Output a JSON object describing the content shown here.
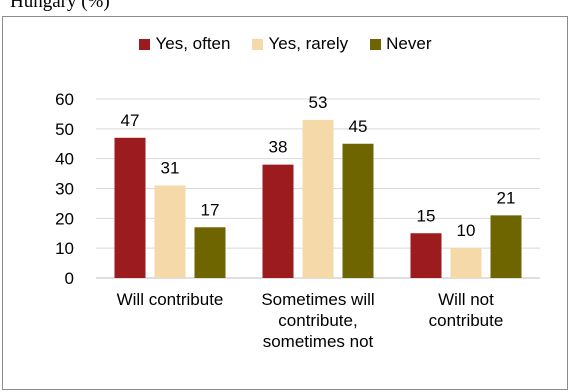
{
  "caption_fragment": "Hungary (%)",
  "chart_data": {
    "type": "bar",
    "title": "",
    "xlabel": "",
    "ylabel": "",
    "ylim": [
      0,
      60
    ],
    "yticks": [
      0,
      10,
      20,
      30,
      40,
      50,
      60
    ],
    "grid": true,
    "legend_position": "top",
    "categories": [
      "Will contribute",
      "Sometimes will contribute, sometimes not",
      "Will not contribute"
    ],
    "category_lines": [
      [
        "Will contribute"
      ],
      [
        "Sometimes will",
        "contribute,",
        "sometimes not"
      ],
      [
        "Will not",
        "contribute"
      ]
    ],
    "series": [
      {
        "name": "Yes, often",
        "color": "#9b1b1f",
        "values": [
          47,
          38,
          15
        ]
      },
      {
        "name": "Yes, rarely",
        "color": "#f5d9a8",
        "values": [
          31,
          53,
          10
        ]
      },
      {
        "name": "Never",
        "color": "#6f6500",
        "values": [
          17,
          45,
          21
        ]
      }
    ]
  }
}
